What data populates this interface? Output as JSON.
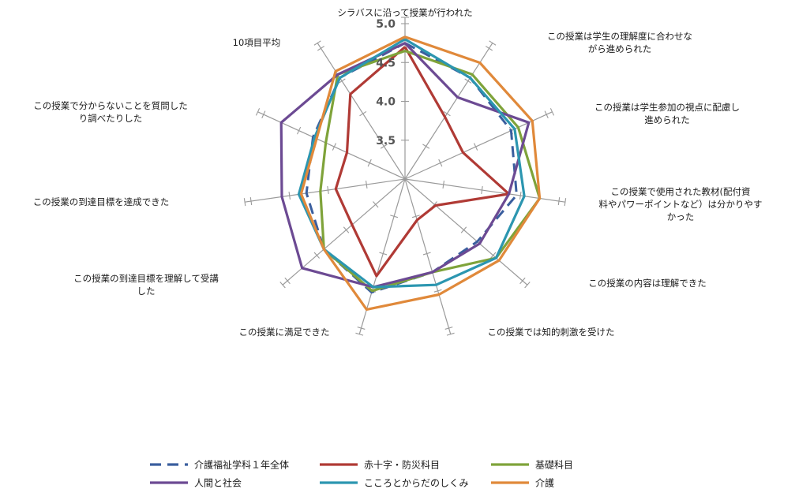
{
  "chart_data": {
    "type": "radar",
    "rlim": [
      3.0,
      5.0
    ],
    "ticks": [
      "3.5",
      "4.0",
      "4.5",
      "5.0"
    ],
    "tick_values": [
      3.5,
      4.0,
      4.5,
      5.0
    ],
    "axes": [
      [
        "シラバスに沿って授業が行われた"
      ],
      [
        "この授業は学生の理解度に合わせな",
        "がら進められた"
      ],
      [
        "この授業は学生参加の視点に配慮し",
        "進められた"
      ],
      [
        "この授業で使用された教材(配付資",
        "料やパワーポイントなど）は分かりやす",
        "かった"
      ],
      [
        "この授業の内容は理解できた"
      ],
      [
        "この授業では知的刺激を受けた"
      ],
      [
        "この授業に満足できた"
      ],
      [
        "この授業の到達目標を理解して受講",
        "した"
      ],
      [
        "この授業の到達目標を達成できた"
      ],
      [
        "この授業で分からないことを質問した",
        "り調べたりした"
      ],
      [
        "10項目平均"
      ]
    ],
    "series": [
      {
        "name": "介護福祉学科１年全体",
        "color": "#3a5e9e",
        "dashed": true,
        "values": [
          4.75,
          4.55,
          4.5,
          4.45,
          4.23,
          4.25,
          4.52,
          4.38,
          4.28,
          4.3,
          4.55
        ]
      },
      {
        "name": "赤十字・防災科目",
        "color": "#b03a35",
        "dashed": false,
        "values": [
          4.7,
          3.95,
          3.82,
          4.35,
          3.52,
          3.55,
          4.3,
          3.9,
          3.9,
          3.82,
          4.3
        ]
      },
      {
        "name": "基礎科目",
        "color": "#7fa33a",
        "dashed": false,
        "values": [
          4.65,
          4.6,
          4.6,
          4.75,
          4.55,
          4.25,
          4.5,
          4.38,
          4.1,
          4.12,
          4.6
        ]
      },
      {
        "name": "人間と社会",
        "color": "#6c4a93",
        "dashed": false,
        "values": [
          4.75,
          4.25,
          4.75,
          4.35,
          4.27,
          4.25,
          4.45,
          4.75,
          4.6,
          4.75,
          4.6
        ]
      },
      {
        "name": "こころとからだのしくみ",
        "color": "#2c96b0",
        "dashed": false,
        "values": [
          4.8,
          4.55,
          4.55,
          4.55,
          4.55,
          4.42,
          4.45,
          4.38,
          4.38,
          4.28,
          4.55
        ]
      },
      {
        "name": "介護",
        "color": "#e0893a",
        "dashed": false,
        "values": [
          4.83,
          4.78,
          4.8,
          4.75,
          4.6,
          4.55,
          4.75,
          4.38,
          4.35,
          4.25,
          4.65
        ]
      }
    ]
  }
}
